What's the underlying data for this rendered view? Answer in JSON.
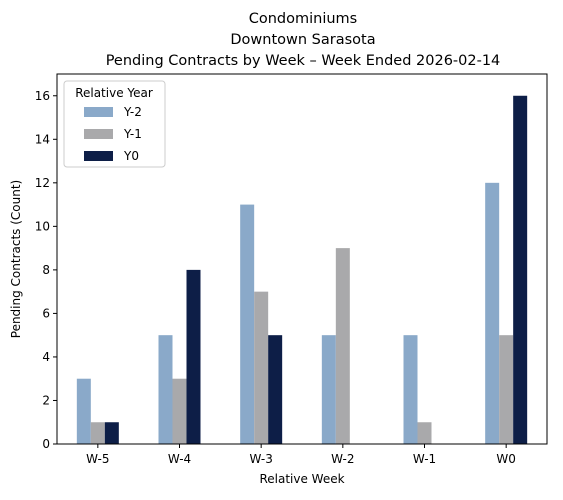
{
  "chart_data": {
    "type": "bar",
    "title_lines": [
      "Condominiums",
      "Downtown Sarasota",
      "Pending Contracts by Week – Week Ended 2026-02-14"
    ],
    "xlabel": "Relative Week",
    "ylabel": "Pending Contracts (Count)",
    "categories": [
      "W-5",
      "W-4",
      "W-3",
      "W-2",
      "W-1",
      "W0"
    ],
    "ylim": [
      0,
      17
    ],
    "yticks": [
      0,
      2,
      4,
      6,
      8,
      10,
      12,
      14,
      16
    ],
    "grid": false,
    "legend": {
      "title": "Relative Year",
      "placement": "top-left"
    },
    "series": [
      {
        "name": "Y-2",
        "color": "#8aa9c9",
        "values": [
          3,
          5,
          11,
          5,
          5,
          12
        ]
      },
      {
        "name": "Y-1",
        "color": "#a9a9ab",
        "values": [
          1,
          3,
          7,
          9,
          1,
          5
        ]
      },
      {
        "name": "Y0",
        "color": "#0d1e47",
        "values": [
          1,
          8,
          5,
          0,
          0,
          16
        ]
      }
    ]
  }
}
